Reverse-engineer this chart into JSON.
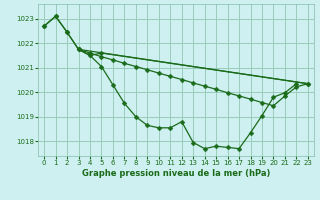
{
  "title": "Graphe pression niveau de la mer (hPa)",
  "bg": "#cef0f0",
  "grid_color": "#99ccbb",
  "line_color": "#1a6b1a",
  "xlim": [
    -0.5,
    23.5
  ],
  "ylim": [
    1017.4,
    1023.6
  ],
  "yticks": [
    1018,
    1019,
    1020,
    1021,
    1022,
    1023
  ],
  "xticks": [
    0,
    1,
    2,
    3,
    4,
    5,
    6,
    7,
    8,
    9,
    10,
    11,
    12,
    13,
    14,
    15,
    16,
    17,
    18,
    19,
    20,
    21,
    22,
    23
  ],
  "line1_x": [
    0,
    1,
    2,
    3,
    4,
    5,
    6,
    7,
    8,
    9,
    10,
    11,
    12,
    13,
    14,
    15,
    16,
    17,
    18,
    19,
    20,
    21,
    22
  ],
  "line1_y": [
    1022.7,
    1023.1,
    1022.45,
    1021.75,
    1021.5,
    1021.05,
    1020.3,
    1019.55,
    1019.0,
    1018.65,
    1018.55,
    1018.55,
    1018.8,
    1017.95,
    1017.7,
    1017.8,
    1017.75,
    1017.7,
    1018.35,
    1019.05,
    1019.8,
    1019.98,
    1020.35
  ],
  "line2_x": [
    0,
    1,
    2,
    3,
    4,
    5,
    23
  ],
  "line2_y": [
    1022.7,
    1023.1,
    1022.45,
    1021.75,
    1021.5,
    1021.6,
    1020.35
  ],
  "line3_x": [
    3,
    23
  ],
  "line3_y": [
    1021.75,
    1020.35
  ],
  "line4_x": [
    3,
    4,
    5,
    6,
    7,
    8,
    9,
    10,
    11,
    12,
    13,
    14,
    15,
    16,
    17,
    18,
    19,
    20,
    21,
    22,
    23
  ],
  "line4_y": [
    1021.75,
    1021.6,
    1021.45,
    1021.32,
    1021.18,
    1021.05,
    1020.92,
    1020.78,
    1020.65,
    1020.52,
    1020.38,
    1020.25,
    1020.12,
    1019.98,
    1019.85,
    1019.72,
    1019.58,
    1019.45,
    1019.85,
    1020.22,
    1020.35
  ]
}
